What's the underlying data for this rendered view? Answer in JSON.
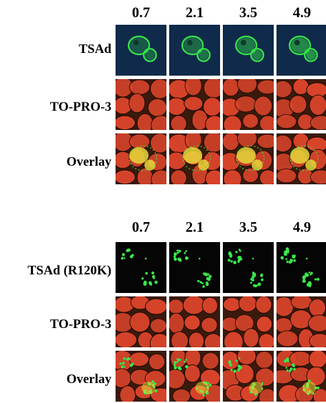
{
  "top_figure": {
    "column_headers": [
      "0.7",
      "2.1",
      "3.5",
      "4.9"
    ],
    "row_labels": [
      "TSAd",
      "TO-PRO-3",
      "Overlay"
    ]
  },
  "bottom_figure": {
    "column_headers": [
      "0.7",
      "2.1",
      "3.5",
      "4.9"
    ],
    "row_labels": [
      "TSAd (R120K)",
      "TO-PRO-3",
      "Overlay"
    ]
  },
  "colors": {
    "tsad_bg": "#0f2a4a",
    "mutant_bg": "#050505",
    "gfp_green": "#39e84a",
    "nucleus_red": "#d8442a",
    "nucleus_bg": "#3a1a0c",
    "overlay_yellow": "#e6d83a"
  }
}
